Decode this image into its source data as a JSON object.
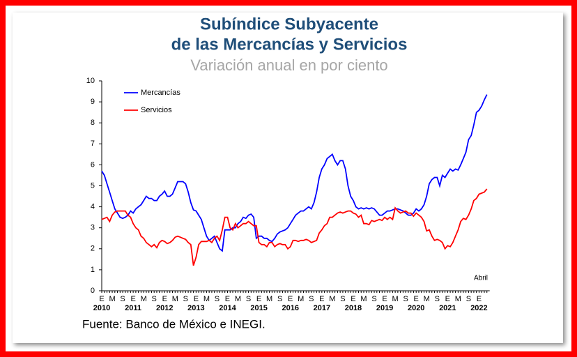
{
  "chart_data": {
    "type": "line",
    "title_lines": [
      "Subíndice Subyacente",
      "de las Mercancías y Servicios"
    ],
    "subtitle": "Variación anual en por ciento",
    "source": "Fuente: Banco de México e INEGI.",
    "annotation": "Abril",
    "categories": [
      "E",
      null,
      null,
      null,
      "M",
      null,
      null,
      null,
      "S",
      null,
      null,
      null,
      "E",
      null,
      null,
      null,
      "M",
      null,
      null,
      null,
      "S",
      null,
      null,
      null,
      "E",
      null,
      null,
      null,
      "M",
      null,
      null,
      null,
      "S",
      null,
      null,
      null,
      "E",
      null,
      null,
      null,
      "M",
      null,
      null,
      null,
      "S",
      null,
      null,
      null,
      "E",
      null,
      null,
      null,
      "M",
      null,
      null,
      null,
      "S",
      null,
      null,
      null,
      "E",
      null,
      null,
      null,
      "M",
      null,
      null,
      null,
      "S",
      null,
      null,
      null,
      "E",
      null,
      null,
      null,
      "M",
      null,
      null,
      null,
      "S",
      null,
      null,
      null,
      "E",
      null,
      null,
      null,
      "M",
      null,
      null,
      null,
      "S",
      null,
      null,
      null,
      "E",
      null,
      null,
      null,
      "M",
      null,
      null,
      null,
      "S",
      null,
      null,
      null,
      "E",
      null,
      null,
      null,
      "M",
      null,
      null,
      null,
      "S",
      null,
      null,
      null,
      "E",
      null,
      null,
      null,
      "M",
      null,
      null,
      null,
      "S",
      null,
      null,
      null,
      "E",
      null,
      null,
      null,
      "M",
      null,
      null,
      null,
      "S",
      null,
      null,
      null,
      "E",
      null,
      null,
      null
    ],
    "x_group_labels": [
      "2010",
      "2011",
      "2012",
      "2013",
      "2014",
      "2015",
      "2016",
      "2017",
      "2018",
      "2019",
      "2020",
      "2021",
      "2022"
    ],
    "series": [
      {
        "name": "Mercancías",
        "color": "#0000ff",
        "values": [
          5.7,
          5.5,
          5.1,
          4.7,
          4.3,
          3.9,
          3.7,
          3.5,
          3.45,
          3.5,
          3.6,
          3.8,
          3.7,
          3.9,
          4.0,
          4.1,
          4.3,
          4.5,
          4.4,
          4.4,
          4.3,
          4.3,
          4.5,
          4.6,
          4.75,
          4.5,
          4.5,
          4.6,
          4.9,
          5.2,
          5.2,
          5.2,
          5.1,
          4.7,
          4.2,
          3.85,
          3.8,
          3.6,
          3.4,
          3.0,
          2.6,
          2.4,
          2.5,
          2.6,
          2.3,
          2.0,
          1.9,
          2.9,
          2.9,
          2.9,
          3.0,
          3.0,
          3.2,
          3.3,
          3.5,
          3.45,
          3.6,
          3.65,
          3.5,
          2.5,
          2.6,
          2.6,
          2.5,
          2.5,
          2.4,
          2.35,
          2.5,
          2.7,
          2.8,
          2.85,
          2.9,
          3.0,
          3.2,
          3.4,
          3.6,
          3.7,
          3.8,
          3.8,
          3.9,
          4.0,
          3.9,
          4.2,
          4.7,
          5.4,
          5.8,
          6.0,
          6.3,
          6.4,
          6.5,
          6.2,
          6.0,
          6.2,
          6.2,
          5.8,
          5.0,
          4.5,
          4.3,
          4.0,
          3.9,
          3.95,
          3.9,
          3.95,
          3.9,
          3.95,
          3.9,
          3.75,
          3.6,
          3.6,
          3.7,
          3.8,
          3.8,
          3.85,
          3.9,
          3.9,
          3.85,
          3.8,
          3.7,
          3.6,
          3.6,
          3.7,
          3.9,
          3.8,
          3.9,
          4.1,
          4.5,
          5.1,
          5.3,
          5.4,
          5.4,
          5.0,
          5.5,
          5.4,
          5.6,
          5.8,
          5.7,
          5.8,
          5.75,
          6.0,
          6.3,
          6.6,
          7.2,
          7.4,
          7.9,
          8.5,
          8.6,
          8.8,
          9.1,
          9.35
        ]
      },
      {
        "name": "Servicios",
        "color": "#ff0000",
        "values": [
          3.4,
          3.45,
          3.5,
          3.3,
          3.6,
          3.75,
          3.8,
          3.8,
          3.8,
          3.8,
          3.6,
          3.5,
          3.2,
          3.0,
          2.9,
          2.6,
          2.5,
          2.3,
          2.2,
          2.1,
          2.2,
          2.05,
          2.3,
          2.4,
          2.35,
          2.25,
          2.3,
          2.4,
          2.55,
          2.6,
          2.55,
          2.5,
          2.45,
          2.3,
          2.2,
          1.2,
          1.6,
          2.2,
          2.35,
          2.35,
          2.35,
          2.4,
          2.3,
          2.5,
          2.6,
          2.4,
          2.9,
          3.5,
          3.5,
          3.0,
          2.9,
          3.2,
          3.0,
          3.1,
          3.2,
          3.2,
          3.3,
          3.2,
          3.1,
          3.1,
          2.3,
          2.2,
          2.2,
          2.1,
          2.3,
          2.3,
          2.1,
          2.2,
          2.25,
          2.2,
          2.2,
          2.0,
          2.1,
          2.4,
          2.4,
          2.35,
          2.4,
          2.4,
          2.45,
          2.4,
          2.3,
          2.35,
          2.4,
          2.75,
          2.9,
          3.1,
          3.2,
          3.5,
          3.5,
          3.6,
          3.7,
          3.75,
          3.7,
          3.75,
          3.8,
          3.8,
          3.7,
          3.65,
          3.5,
          3.6,
          3.2,
          3.2,
          3.15,
          3.35,
          3.3,
          3.35,
          3.4,
          3.35,
          3.5,
          3.4,
          3.5,
          3.4,
          3.95,
          3.8,
          3.7,
          3.75,
          3.8,
          3.7,
          3.7,
          3.55,
          3.7,
          3.6,
          3.5,
          3.3,
          2.85,
          2.9,
          2.6,
          2.4,
          2.45,
          2.4,
          2.3,
          2.0,
          2.15,
          2.1,
          2.3,
          2.6,
          2.9,
          3.3,
          3.45,
          3.4,
          3.6,
          3.9,
          4.3,
          4.4,
          4.6,
          4.65,
          4.7,
          4.85
        ]
      }
    ],
    "ylim": [
      0,
      10
    ],
    "yticks": [
      0,
      1,
      2,
      3,
      4,
      5,
      6,
      7,
      8,
      9,
      10
    ],
    "grid": false
  }
}
